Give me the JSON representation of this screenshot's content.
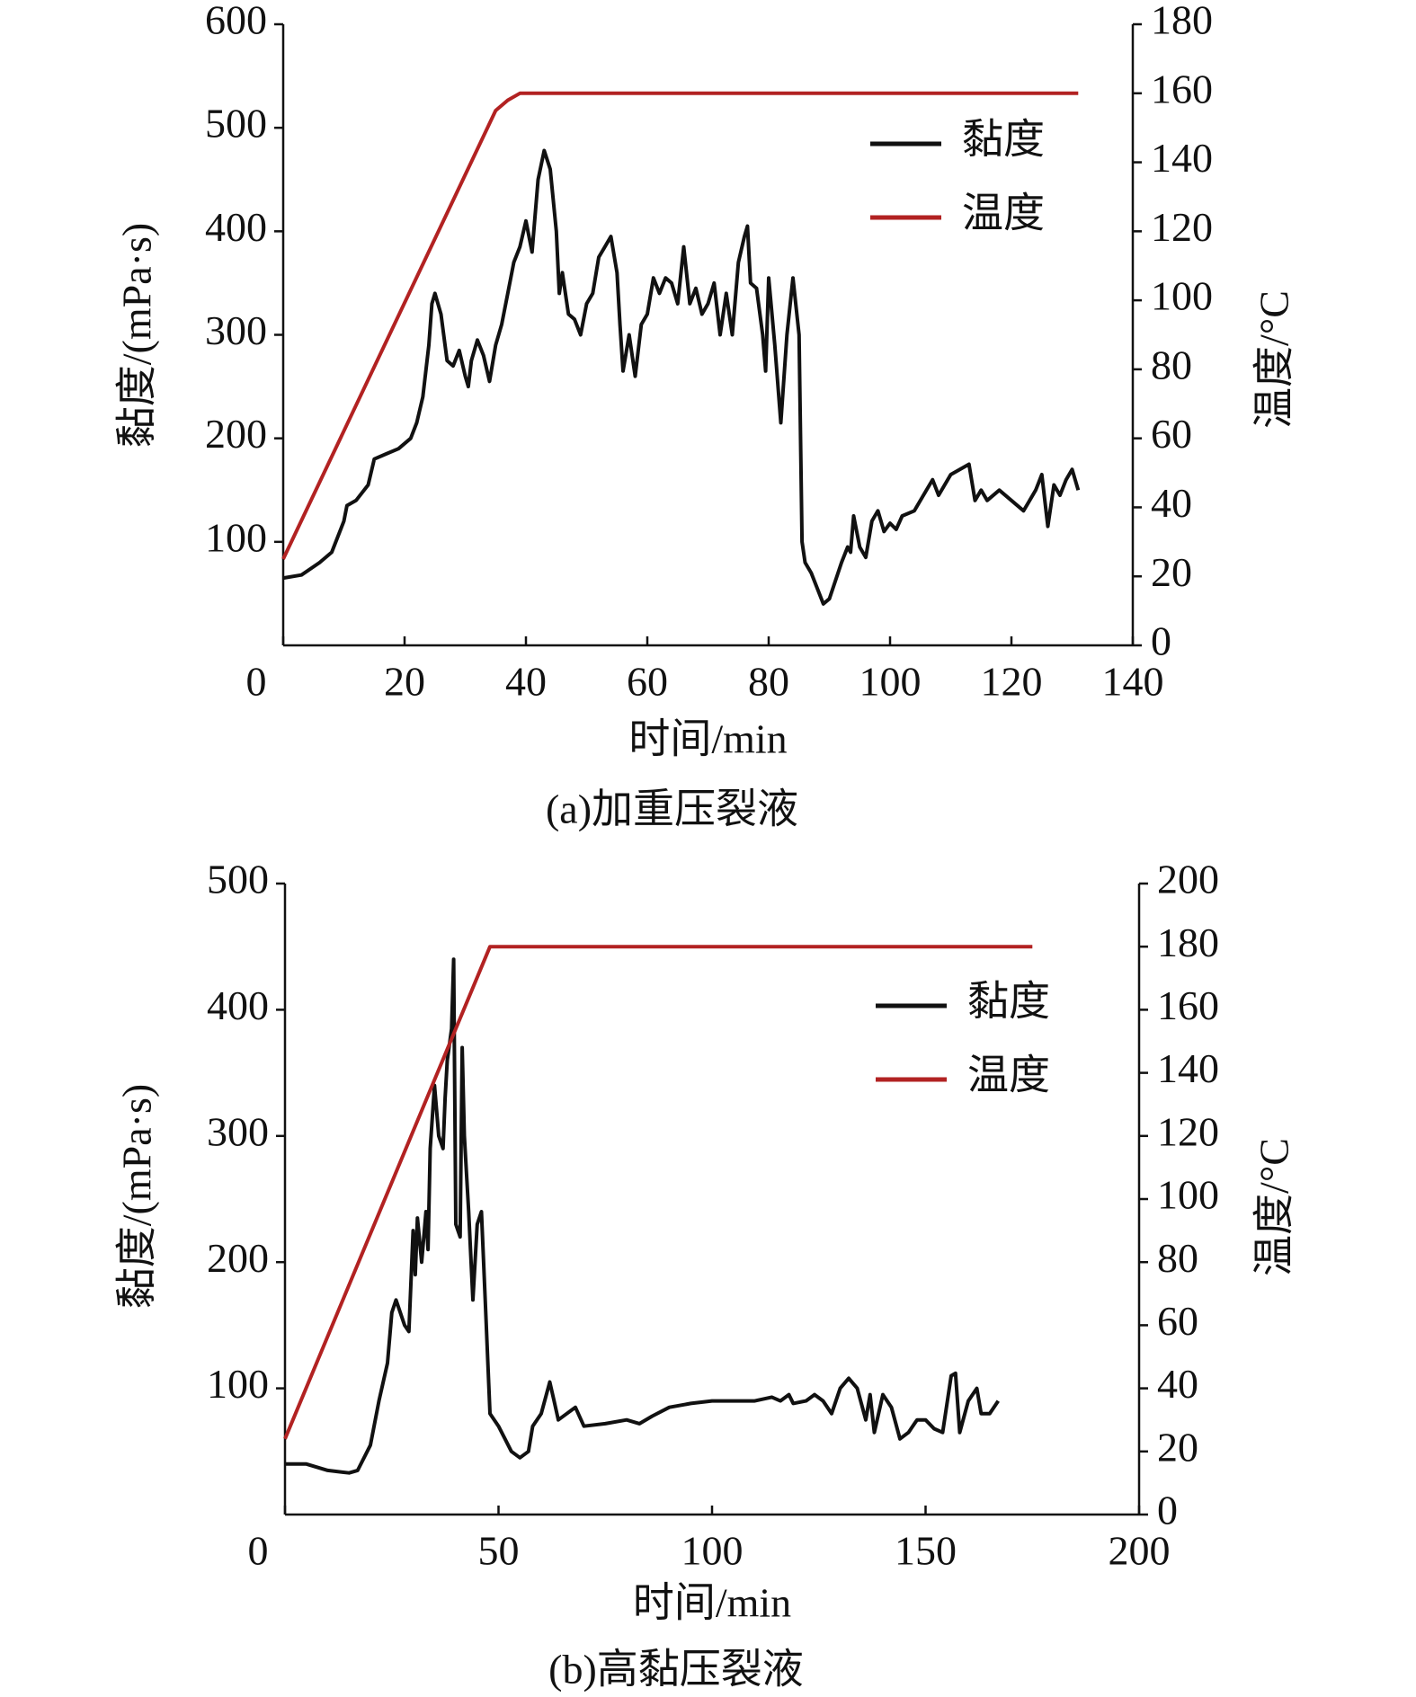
{
  "chart_data": [
    {
      "type": "line",
      "caption": "(a)加重压裂液",
      "xlabel": "时间/min",
      "ylabel": "黏度/(mPa·s)",
      "y2label": "温度/°C",
      "xlim": [
        0,
        140
      ],
      "xticks": [
        0,
        20,
        40,
        60,
        80,
        100,
        120,
        140
      ],
      "ylim": [
        0,
        600
      ],
      "yticks": [
        100,
        200,
        300,
        400,
        500,
        600
      ],
      "y2lim": [
        0,
        180
      ],
      "y2ticks": [
        0,
        20,
        40,
        60,
        80,
        100,
        120,
        140,
        160,
        180
      ],
      "series": [
        {
          "name": "黏度",
          "color": "#111111",
          "x": [
            0,
            3,
            6,
            8,
            10,
            10.5,
            12,
            14,
            15,
            17,
            19,
            21,
            22,
            23,
            24,
            24.5,
            25,
            26,
            27,
            28,
            29,
            30,
            30.5,
            31,
            32,
            33,
            34,
            35,
            36,
            37,
            38,
            39,
            40,
            41,
            42,
            43,
            44,
            45,
            45.5,
            46,
            47,
            48,
            49,
            50,
            51,
            52,
            53,
            54,
            55,
            55.5,
            56,
            57,
            58,
            59,
            60,
            61,
            62,
            63,
            64,
            65,
            66,
            67,
            68,
            69,
            70,
            71,
            72,
            73,
            74,
            75,
            76,
            76.5,
            77,
            78,
            79,
            79.5,
            80,
            81,
            82,
            83,
            84,
            85,
            85.5,
            86,
            87,
            89,
            90,
            92,
            93,
            93.5,
            94,
            95,
            96,
            97,
            98,
            99,
            100,
            101,
            102,
            104,
            106,
            107,
            108,
            110,
            113,
            114,
            115,
            116,
            118,
            120,
            122,
            124,
            125,
            126,
            127,
            128,
            129,
            130,
            131
          ],
          "values": [
            65,
            68,
            80,
            90,
            120,
            135,
            140,
            155,
            180,
            185,
            190,
            200,
            215,
            240,
            290,
            330,
            340,
            320,
            275,
            270,
            285,
            260,
            250,
            275,
            295,
            280,
            255,
            290,
            310,
            340,
            370,
            385,
            410,
            380,
            450,
            478,
            460,
            400,
            340,
            360,
            320,
            315,
            300,
            330,
            340,
            375,
            385,
            395,
            360,
            310,
            265,
            300,
            260,
            310,
            320,
            355,
            340,
            355,
            350,
            330,
            385,
            330,
            345,
            320,
            330,
            350,
            300,
            340,
            300,
            370,
            395,
            405,
            350,
            345,
            300,
            265,
            355,
            290,
            215,
            300,
            355,
            300,
            100,
            80,
            70,
            40,
            45,
            80,
            95,
            90,
            125,
            95,
            85,
            120,
            130,
            110,
            118,
            112,
            125,
            130,
            150,
            160,
            145,
            165,
            175,
            140,
            150,
            140,
            150,
            140,
            130,
            150,
            165,
            115,
            155,
            145,
            160,
            170,
            150
          ]
        },
        {
          "name": "温度",
          "color": "#b22222",
          "axis": "y2",
          "x": [
            0,
            35,
            37,
            39,
            131
          ],
          "values": [
            25,
            155,
            158,
            160,
            160
          ]
        }
      ]
    },
    {
      "type": "line",
      "caption": "(b)高黏压裂液",
      "xlabel": "时间/min",
      "ylabel": "黏度/(mPa·s)",
      "y2label": "温度/°C",
      "xlim": [
        0,
        200
      ],
      "xticks": [
        0,
        50,
        100,
        150,
        200
      ],
      "ylim": [
        0,
        500
      ],
      "yticks": [
        100,
        200,
        300,
        400,
        500
      ],
      "y2lim": [
        0,
        200
      ],
      "y2ticks": [
        0,
        20,
        40,
        60,
        80,
        100,
        120,
        140,
        160,
        180,
        200
      ],
      "series": [
        {
          "name": "黏度",
          "color": "#111111",
          "x": [
            0,
            5,
            10,
            15,
            17,
            20,
            22,
            24,
            25,
            26,
            28,
            29,
            30,
            30.5,
            31,
            32,
            33,
            33.5,
            34,
            35,
            36,
            37,
            37.5,
            38,
            39,
            39.5,
            40,
            41,
            41.5,
            42,
            43,
            44,
            45,
            46,
            47,
            48,
            50,
            53,
            55,
            57,
            58,
            60,
            62,
            63,
            64,
            66,
            68,
            70,
            75,
            80,
            83,
            86,
            90,
            95,
            100,
            105,
            110,
            114,
            116,
            118,
            119,
            122,
            124,
            126,
            128,
            130,
            132,
            134,
            136,
            137,
            138,
            140,
            142,
            144,
            146,
            148,
            150,
            152,
            154,
            156,
            157,
            158,
            160,
            162,
            163,
            165,
            167
          ],
          "values": [
            40,
            40,
            35,
            33,
            35,
            55,
            90,
            120,
            160,
            170,
            150,
            145,
            225,
            190,
            235,
            200,
            240,
            210,
            290,
            340,
            300,
            290,
            330,
            360,
            385,
            440,
            230,
            220,
            370,
            300,
            240,
            170,
            230,
            240,
            160,
            80,
            70,
            50,
            45,
            50,
            70,
            80,
            105,
            90,
            75,
            80,
            85,
            70,
            72,
            75,
            72,
            78,
            85,
            88,
            90,
            90,
            90,
            93,
            90,
            95,
            88,
            90,
            95,
            90,
            80,
            100,
            108,
            100,
            75,
            95,
            65,
            95,
            85,
            60,
            65,
            75,
            75,
            68,
            65,
            110,
            112,
            65,
            90,
            100,
            80,
            80,
            90
          ]
        },
        {
          "name": "温度",
          "color": "#b22222",
          "axis": "y2",
          "x": [
            0,
            48,
            175
          ],
          "values": [
            24,
            180,
            180
          ]
        }
      ]
    }
  ]
}
